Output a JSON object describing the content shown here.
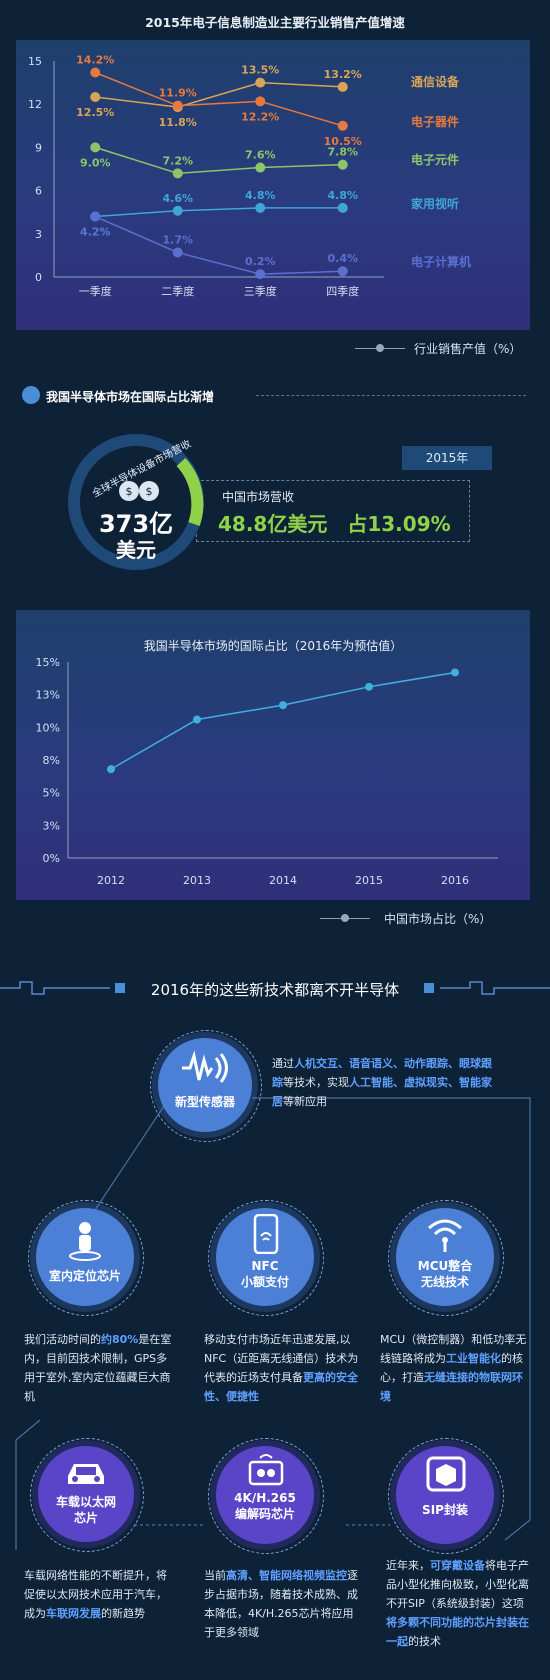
{
  "chart1": {
    "title": "2015年电子信息制造业主要行业销售产值增速",
    "legend_label": "行业销售产值（%）",
    "chart_data": {
      "type": "line",
      "categories": [
        "一季度",
        "二季度",
        "三季度",
        "四季度"
      ],
      "ylim": [
        0,
        15
      ],
      "yticks": [
        "0",
        "3",
        "6",
        "9",
        "12",
        "15"
      ],
      "series": [
        {
          "name": "通信设备",
          "values": [
            12.5,
            11.8,
            13.5,
            13.2
          ],
          "labels": [
            "12.5%",
            "11.8%",
            "13.5%",
            "13.2%"
          ],
          "color": "#d9a45a"
        },
        {
          "name": "电子器件",
          "values": [
            14.2,
            11.9,
            12.2,
            10.5
          ],
          "labels": [
            "14.2%",
            "11.9%",
            "12.2%",
            "10.5%"
          ],
          "color": "#e57a3c"
        },
        {
          "name": "电子元件",
          "values": [
            9.0,
            7.2,
            7.6,
            7.8
          ],
          "labels": [
            "9.0%",
            "7.2%",
            "7.6%",
            "7.8%"
          ],
          "color": "#8cc56a"
        },
        {
          "name": "家用视听",
          "values": [
            4.2,
            4.6,
            4.8,
            4.8
          ],
          "labels": [
            "4.2%",
            "4.6%",
            "4.8%",
            "4.8%"
          ],
          "color": "#3fa6d8"
        },
        {
          "name": "电子计算机",
          "values": [
            4.2,
            1.7,
            0.2,
            0.4
          ],
          "labels": [
            "4.2%",
            "1.7%",
            "0.2%",
            "0.4%"
          ],
          "color": "#5a6fd0"
        }
      ]
    }
  },
  "section2": {
    "title": "我国半导体市场在国际占比渐增",
    "year_tag": "2015年",
    "ring_caption": "全球半导体设备市场营收",
    "ring_value_num": "373亿",
    "ring_value_unit": "美元",
    "market_label": "中国市场营收",
    "market_value": "48.8亿美元　占13.09%"
  },
  "chart2": {
    "title": "我国半导体市场的国际占比（2016年为预估值）",
    "legend_label": "中国市场占比（%）",
    "chart_data": {
      "type": "line",
      "categories": [
        "2012",
        "2013",
        "2014",
        "2015",
        "2016"
      ],
      "ylim": [
        0,
        15
      ],
      "yticks": [
        "0%",
        "3%",
        "5%",
        "8%",
        "10%",
        "13%",
        "15%"
      ],
      "series": [
        {
          "values": [
            6.8,
            10.6,
            11.7,
            13.1,
            14.2
          ],
          "color": "#3fb0e0"
        }
      ]
    }
  },
  "section3": {
    "title": "2016年的这些新技术都离不开半导体",
    "nodes": [
      {
        "label": "新型传感器",
        "icon": "sensor-wave-icon"
      },
      {
        "label": "室内定位芯片",
        "icon": "person-location-icon"
      },
      {
        "label": "NFC\n小额支付",
        "icon": "phone-nfc-icon"
      },
      {
        "label": "MCU整合\n无线技术",
        "icon": "wifi-signal-icon"
      },
      {
        "label": "车载以太网\n芯片",
        "icon": "car-icon"
      },
      {
        "label": "4K/H.265\n编解码芯片",
        "icon": "video-player-icon"
      },
      {
        "label": "SIP封装",
        "icon": "package-box-icon"
      }
    ],
    "desc_sensor": [
      "通过",
      "人机交互、语音语义、动作跟踪、眼球跟踪",
      "等技术，实现",
      "人工智能、虚拟现实、智能家居",
      "等新应用"
    ],
    "desc_indoor": [
      "我们活动时间的",
      "约80%",
      "是在室内，目前因技术限制，GPS多用于室外,室内定位蕴藏巨大商机"
    ],
    "desc_nfc": [
      "移动支付市场近年迅速发展,以NFC（近距离无线通信）技术为代表的近场支付具备",
      "更高的安全性、便捷性"
    ],
    "desc_mcu": [
      "MCU（微控制器）和低功率无线链路将成为",
      "工业智能化",
      "的核心，打造",
      "无缝连接的物联网环境"
    ],
    "desc_car": [
      "车载网络性能的不断提升，将促使以太网技术应用于汽车，成为",
      "车联网发展",
      "的新趋势"
    ],
    "desc_4k": [
      "当前",
      "高清、智能网络视频监控",
      "逐步占据市场，随着技术成熟、成本降低，4K/H.265芯片将应用于更多领域"
    ],
    "desc_sip": [
      "近年来，",
      "可穿戴设备",
      "将电子产品小型化推向极致，小型化离不开SIP（系统级封装）这项",
      "将多颗不同功能的芯片封装在一起",
      "的技术"
    ]
  }
}
